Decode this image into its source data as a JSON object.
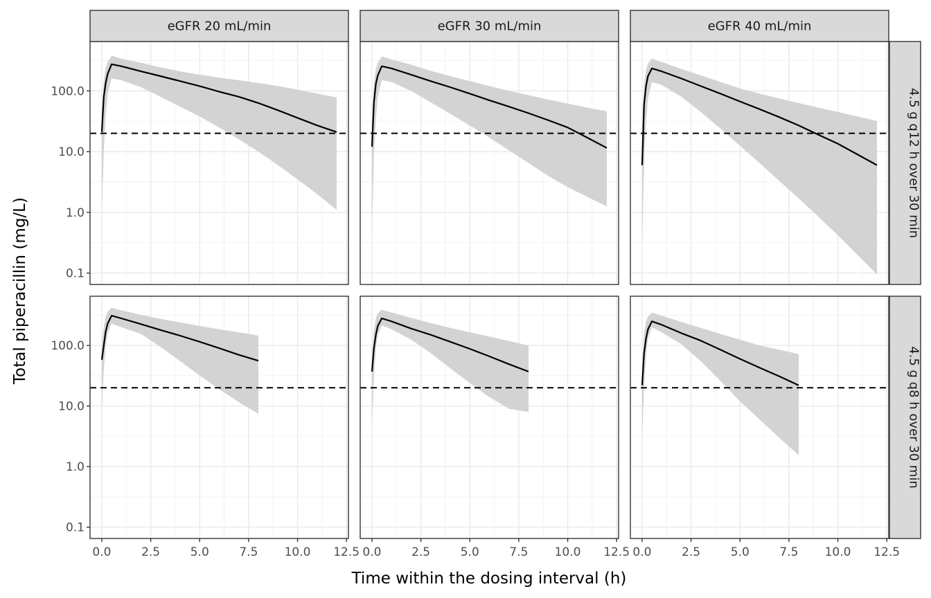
{
  "chart_data": {
    "type": "line",
    "title": "",
    "xlabel": "Time within the dosing interval (h)",
    "ylabel": "Total piperacillin (mg/L)",
    "y_scale": "log10",
    "ylim": [
      0.065,
      650
    ],
    "xlim": [
      -0.6,
      12.6
    ],
    "x_ticks": [
      0,
      2.5,
      5,
      7.5,
      10,
      12.5
    ],
    "x_tick_labels": [
      "0.0",
      "2.5",
      "5.0",
      "7.5",
      "10.0",
      "12.5"
    ],
    "y_ticks": [
      0.1,
      1,
      10,
      100
    ],
    "y_tick_labels": [
      "0.1",
      "1.0",
      "10.0",
      "100.0"
    ],
    "threshold": 20,
    "grid": true,
    "legend": "none",
    "col_facets": [
      "eGFR 20 mL/min",
      "eGFR 30 mL/min",
      "eGFR 40 mL/min"
    ],
    "row_facets": [
      "4.5 g q12 h over 30 min",
      "4.5 g q8 h over 30 min"
    ],
    "colors": {
      "line": "#000000",
      "ribbon": "#d3d3d3",
      "strip": "#d9d9d9",
      "threshold": "#000000"
    },
    "panels": [
      {
        "row": 0,
        "col": 0,
        "x": [
          0,
          0.1,
          0.2,
          0.3,
          0.5,
          1,
          2,
          3,
          4,
          5,
          6,
          7,
          8,
          9,
          10,
          11,
          12
        ],
        "median": [
          21,
          80,
          135,
          190,
          275,
          255,
          210,
          175,
          145,
          120,
          97,
          80,
          63,
          48,
          36,
          27,
          21
        ],
        "lower": [
          1,
          10,
          40,
          90,
          160,
          150,
          115,
          80,
          55,
          38,
          25,
          16,
          10,
          6,
          3.5,
          2,
          1.1
        ],
        "upper": [
          40,
          150,
          240,
          300,
          380,
          340,
          290,
          245,
          210,
          185,
          165,
          150,
          135,
          120,
          105,
          90,
          78
        ]
      },
      {
        "row": 0,
        "col": 1,
        "x": [
          0,
          0.1,
          0.2,
          0.3,
          0.5,
          1,
          2,
          3,
          4,
          5,
          6,
          7,
          8,
          9,
          10,
          11,
          12
        ],
        "median": [
          12,
          65,
          130,
          180,
          255,
          235,
          185,
          145,
          115,
          90,
          70,
          55,
          43,
          33,
          25,
          17,
          11.5
        ],
        "lower": [
          0.5,
          8,
          35,
          80,
          150,
          140,
          100,
          65,
          42,
          27,
          17,
          10.5,
          6.5,
          4,
          2.6,
          1.8,
          1.25
        ],
        "upper": [
          30,
          140,
          230,
          290,
          370,
          330,
          270,
          215,
          175,
          145,
          120,
          100,
          85,
          72,
          62,
          53,
          46
        ]
      },
      {
        "row": 0,
        "col": 2,
        "x": [
          0,
          0.1,
          0.2,
          0.3,
          0.5,
          1,
          2,
          3,
          4,
          5,
          6,
          7,
          8,
          9,
          10,
          11,
          12
        ],
        "median": [
          6,
          60,
          120,
          175,
          235,
          210,
          160,
          120,
          90,
          67,
          50,
          37,
          27,
          19,
          13.5,
          9,
          6
        ],
        "lower": [
          0.3,
          6,
          30,
          75,
          140,
          125,
          80,
          45,
          24,
          12.5,
          6.5,
          3.3,
          1.7,
          0.85,
          0.42,
          0.2,
          0.095
        ],
        "upper": [
          25,
          130,
          220,
          280,
          340,
          300,
          230,
          180,
          140,
          110,
          90,
          75,
          63,
          53,
          45,
          38,
          32
        ]
      },
      {
        "row": 1,
        "col": 0,
        "x": [
          0,
          0.1,
          0.2,
          0.3,
          0.5,
          1,
          2,
          3,
          4,
          5,
          6,
          7,
          8
        ],
        "median": [
          58,
          100,
          170,
          230,
          310,
          280,
          225,
          180,
          145,
          115,
          90,
          70,
          56
        ],
        "lower": [
          8,
          40,
          100,
          160,
          230,
          200,
          155,
          95,
          55,
          32,
          19,
          11.5,
          7.5
        ],
        "upper": [
          100,
          200,
          300,
          360,
          420,
          380,
          320,
          275,
          240,
          210,
          185,
          165,
          145
        ]
      },
      {
        "row": 1,
        "col": 1,
        "x": [
          0,
          0.1,
          0.2,
          0.3,
          0.5,
          1,
          2,
          3,
          4,
          5,
          6,
          7,
          8
        ],
        "median": [
          37,
          90,
          150,
          210,
          280,
          250,
          190,
          150,
          115,
          88,
          66,
          49,
          37
        ],
        "lower": [
          5,
          30,
          90,
          150,
          215,
          185,
          125,
          75,
          42,
          24,
          14,
          9,
          8
        ],
        "upper": [
          70,
          180,
          280,
          340,
          390,
          350,
          285,
          235,
          195,
          165,
          140,
          118,
          100
        ]
      },
      {
        "row": 1,
        "col": 2,
        "x": [
          0,
          0.1,
          0.2,
          0.3,
          0.5,
          1,
          2,
          3,
          4,
          5,
          6,
          7,
          8
        ],
        "median": [
          22,
          75,
          130,
          185,
          250,
          220,
          160,
          120,
          85,
          60,
          43,
          31,
          22
        ],
        "lower": [
          3,
          20,
          70,
          130,
          200,
          165,
          105,
          55,
          26,
          12,
          6,
          3,
          1.55
        ],
        "upper": [
          50,
          160,
          250,
          300,
          350,
          310,
          245,
          195,
          155,
          125,
          100,
          85,
          72
        ]
      }
    ]
  }
}
